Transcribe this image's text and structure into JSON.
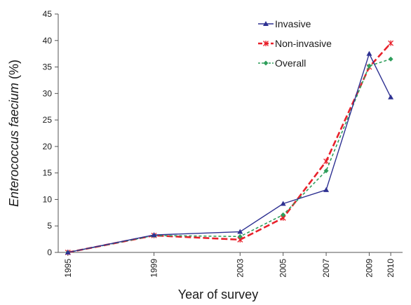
{
  "chart_data": {
    "type": "line",
    "title": "",
    "xlabel": "Year of survey",
    "ylabel_italic": "Enterococcus faecium",
    "ylabel_unit": " (%)",
    "x": [
      1995,
      1999,
      2003,
      2005,
      2007,
      2009,
      2010
    ],
    "x_tick_labels": [
      "1995",
      "1999",
      "2003",
      "2005",
      "2007",
      "2009",
      "2010"
    ],
    "ylim": [
      0,
      45
    ],
    "y_ticks": [
      0,
      5,
      10,
      15,
      20,
      25,
      30,
      35,
      40,
      45
    ],
    "y_tick_labels": [
      "0",
      "5",
      "10",
      "15",
      "20",
      "25",
      "30",
      "35",
      "40",
      "45"
    ],
    "grid": false,
    "legend_position": "top-right",
    "series": [
      {
        "name": "Invasive",
        "values": [
          0,
          3.3,
          3.9,
          9.2,
          11.8,
          37.5,
          29.3
        ],
        "color": "#2e3192",
        "marker": "triangle",
        "dash": "solid"
      },
      {
        "name": "Non-invasive",
        "values": [
          0,
          3.2,
          2.4,
          6.5,
          17.2,
          35.0,
          39.5
        ],
        "color": "#e8212b",
        "marker": "star",
        "dash": "dashed"
      },
      {
        "name": "Overall",
        "values": [
          0,
          3.2,
          3.0,
          7.1,
          15.4,
          35.2,
          36.5
        ],
        "color": "#2e9e5b",
        "marker": "diamond",
        "dash": "dotted"
      }
    ]
  }
}
